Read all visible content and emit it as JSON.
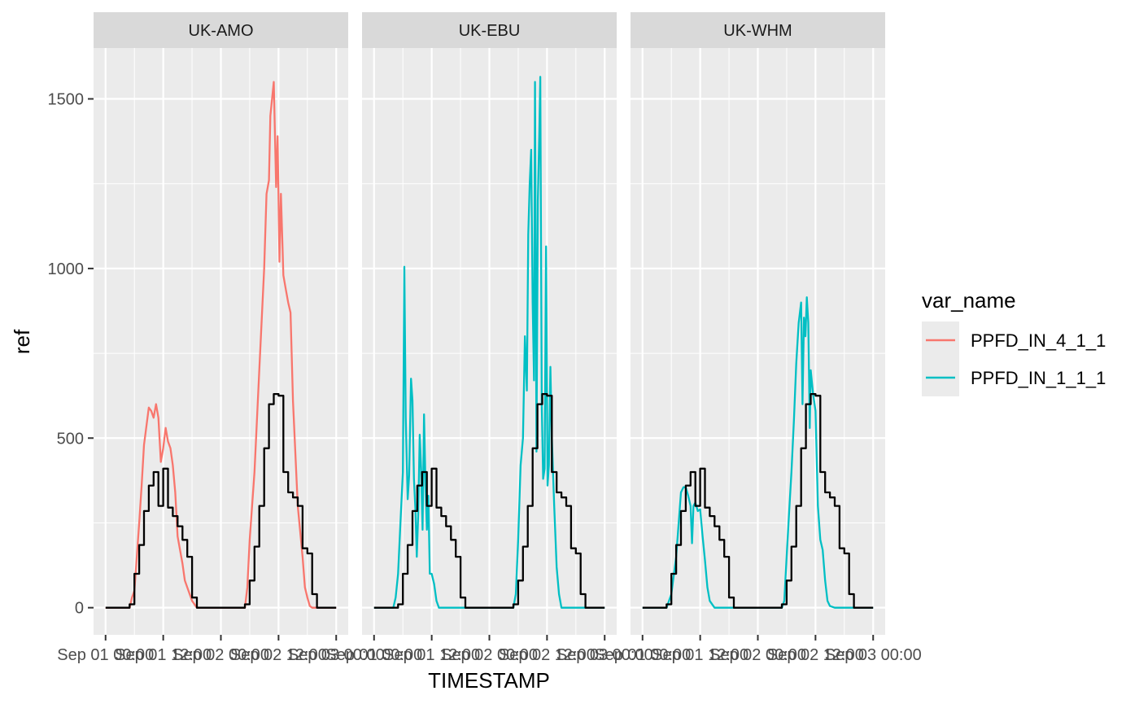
{
  "chart_data": {
    "type": "line",
    "facet_var": "site",
    "xlabel": "TIMESTAMP",
    "ylabel": "ref",
    "ylim": [
      -80,
      1650
    ],
    "y_ticks": [
      0,
      500,
      1000,
      1500
    ],
    "x_tick_labels": [
      "Sep 01 00:00",
      "Sep 01 12:00",
      "Sep 02 00:00",
      "Sep 02 12:00",
      "Sep 03 00:00"
    ],
    "x_range_hours": [
      -2.5,
      50.5
    ],
    "legend": {
      "title": "var_name",
      "entries": [
        {
          "label": "PPFD_IN_4_1_1",
          "color": "#F8766D"
        },
        {
          "label": "PPFD_IN_1_1_1",
          "color": "#00BFC4"
        }
      ]
    },
    "reference_color": "#000000",
    "reference": [
      [
        0,
        0
      ],
      [
        5,
        0
      ],
      [
        5,
        10
      ],
      [
        6,
        10
      ],
      [
        6,
        100
      ],
      [
        7,
        100
      ],
      [
        7,
        185
      ],
      [
        8,
        185
      ],
      [
        8,
        285
      ],
      [
        9,
        285
      ],
      [
        9,
        360
      ],
      [
        10,
        360
      ],
      [
        10,
        400
      ],
      [
        11,
        400
      ],
      [
        11,
        300
      ],
      [
        12,
        300
      ],
      [
        12,
        410
      ],
      [
        13,
        410
      ],
      [
        13,
        295
      ],
      [
        14,
        295
      ],
      [
        14,
        270
      ],
      [
        15,
        270
      ],
      [
        15,
        240
      ],
      [
        16,
        240
      ],
      [
        16,
        200
      ],
      [
        17,
        200
      ],
      [
        17,
        150
      ],
      [
        18,
        150
      ],
      [
        18,
        30
      ],
      [
        19,
        30
      ],
      [
        19,
        0
      ],
      [
        29,
        0
      ],
      [
        29,
        10
      ],
      [
        30,
        10
      ],
      [
        30,
        80
      ],
      [
        31,
        80
      ],
      [
        31,
        180
      ],
      [
        32,
        180
      ],
      [
        32,
        300
      ],
      [
        33,
        300
      ],
      [
        33,
        470
      ],
      [
        34,
        470
      ],
      [
        34,
        600
      ],
      [
        35,
        600
      ],
      [
        35,
        630
      ],
      [
        36,
        630
      ],
      [
        36,
        625
      ],
      [
        37,
        625
      ],
      [
        37,
        400
      ],
      [
        38,
        400
      ],
      [
        38,
        340
      ],
      [
        39,
        340
      ],
      [
        39,
        325
      ],
      [
        40,
        325
      ],
      [
        40,
        300
      ],
      [
        41,
        300
      ],
      [
        41,
        175
      ],
      [
        42,
        175
      ],
      [
        42,
        160
      ],
      [
        43,
        160
      ],
      [
        43,
        40
      ],
      [
        44,
        40
      ],
      [
        44,
        0
      ],
      [
        48,
        0
      ]
    ],
    "panels": [
      {
        "label": "UK-AMO",
        "series_name": "PPFD_IN_4_1_1",
        "color": "#F8766D",
        "points": [
          [
            0,
            0
          ],
          [
            5,
            0
          ],
          [
            5.5,
            30
          ],
          [
            6,
            50
          ],
          [
            7,
            250
          ],
          [
            7.5,
            360
          ],
          [
            8,
            480
          ],
          [
            9,
            590
          ],
          [
            9.5,
            580
          ],
          [
            10,
            560
          ],
          [
            10.5,
            600
          ],
          [
            11,
            560
          ],
          [
            11.5,
            430
          ],
          [
            12,
            470
          ],
          [
            12.5,
            530
          ],
          [
            13,
            490
          ],
          [
            13.5,
            470
          ],
          [
            14,
            420
          ],
          [
            14.5,
            340
          ],
          [
            15,
            210
          ],
          [
            16,
            130
          ],
          [
            16.5,
            80
          ],
          [
            17,
            60
          ],
          [
            18,
            20
          ],
          [
            19,
            0
          ],
          [
            29,
            0
          ],
          [
            29.5,
            60
          ],
          [
            30,
            200
          ],
          [
            31,
            400
          ],
          [
            32,
            700
          ],
          [
            33,
            1000
          ],
          [
            33.5,
            1220
          ],
          [
            34,
            1260
          ],
          [
            34.3,
            1450
          ],
          [
            35,
            1550
          ],
          [
            35.5,
            1240
          ],
          [
            35.8,
            1390
          ],
          [
            36.2,
            1020
          ],
          [
            36.5,
            1220
          ],
          [
            37,
            980
          ],
          [
            37.5,
            940
          ],
          [
            38,
            900
          ],
          [
            38.5,
            870
          ],
          [
            39,
            610
          ],
          [
            40,
            300
          ],
          [
            41,
            150
          ],
          [
            41.5,
            60
          ],
          [
            42,
            30
          ],
          [
            42.5,
            5
          ],
          [
            43,
            0
          ],
          [
            48,
            0
          ]
        ]
      },
      {
        "label": "UK-EBU",
        "series_name": "PPFD_IN_1_1_1",
        "color": "#00BFC4",
        "points": [
          [
            0,
            0
          ],
          [
            4,
            0
          ],
          [
            4.5,
            30
          ],
          [
            5,
            100
          ],
          [
            5.5,
            250
          ],
          [
            6,
            400
          ],
          [
            6.3,
            1005
          ],
          [
            6.6,
            560
          ],
          [
            7,
            320
          ],
          [
            7.3,
            390
          ],
          [
            7.7,
            675
          ],
          [
            8,
            610
          ],
          [
            8.3,
            380
          ],
          [
            8.6,
            290
          ],
          [
            8.9,
            150
          ],
          [
            9.2,
            280
          ],
          [
            9.5,
            510
          ],
          [
            9.8,
            410
          ],
          [
            10.1,
            230
          ],
          [
            10.4,
            570
          ],
          [
            10.7,
            360
          ],
          [
            11,
            230
          ],
          [
            11.3,
            330
          ],
          [
            11.6,
            100
          ],
          [
            12,
            100
          ],
          [
            12.5,
            70
          ],
          [
            13,
            20
          ],
          [
            13.5,
            0
          ],
          [
            14,
            0
          ],
          [
            29,
            0
          ],
          [
            29.5,
            40
          ],
          [
            30,
            200
          ],
          [
            30.5,
            420
          ],
          [
            31,
            500
          ],
          [
            31.4,
            800
          ],
          [
            31.8,
            640
          ],
          [
            32.1,
            1100
          ],
          [
            32.4,
            1250
          ],
          [
            32.7,
            1350
          ],
          [
            33,
            900
          ],
          [
            33.3,
            670
          ],
          [
            33.5,
            1550
          ],
          [
            33.8,
            460
          ],
          [
            34.1,
            1200
          ],
          [
            34.4,
            1400
          ],
          [
            34.6,
            1565
          ],
          [
            34.9,
            600
          ],
          [
            35.2,
            380
          ],
          [
            35.5,
            410
          ],
          [
            35.8,
            1065
          ],
          [
            36.1,
            360
          ],
          [
            36.4,
            420
          ],
          [
            36.7,
            710
          ],
          [
            37,
            500
          ],
          [
            37.5,
            300
          ],
          [
            38,
            120
          ],
          [
            38.5,
            40
          ],
          [
            39,
            0
          ],
          [
            48,
            0
          ]
        ]
      },
      {
        "label": "UK-WHM",
        "series_name": "PPFD_IN_1_1_1",
        "color": "#00BFC4",
        "points": [
          [
            0,
            0
          ],
          [
            5,
            0
          ],
          [
            6,
            40
          ],
          [
            7,
            150
          ],
          [
            8,
            340
          ],
          [
            8.5,
            355
          ],
          [
            9,
            355
          ],
          [
            9.5,
            330
          ],
          [
            10,
            300
          ],
          [
            10.3,
            190
          ],
          [
            10.6,
            300
          ],
          [
            11,
            310
          ],
          [
            11.5,
            285
          ],
          [
            12,
            290
          ],
          [
            12.5,
            210
          ],
          [
            13,
            140
          ],
          [
            13.5,
            60
          ],
          [
            14,
            20
          ],
          [
            15,
            0
          ],
          [
            29,
            0
          ],
          [
            29.5,
            20
          ],
          [
            30,
            150
          ],
          [
            30.5,
            280
          ],
          [
            31,
            400
          ],
          [
            31.5,
            550
          ],
          [
            32,
            720
          ],
          [
            32.5,
            840
          ],
          [
            33,
            900
          ],
          [
            33.3,
            600
          ],
          [
            33.6,
            855
          ],
          [
            33.9,
            800
          ],
          [
            34.2,
            915
          ],
          [
            34.5,
            840
          ],
          [
            34.8,
            530
          ],
          [
            35,
            700
          ],
          [
            35.5,
            630
          ],
          [
            36,
            580
          ],
          [
            36.5,
            300
          ],
          [
            37,
            200
          ],
          [
            37.5,
            170
          ],
          [
            38,
            80
          ],
          [
            38.5,
            20
          ],
          [
            39,
            5
          ],
          [
            40,
            0
          ],
          [
            48,
            0
          ]
        ]
      }
    ]
  }
}
